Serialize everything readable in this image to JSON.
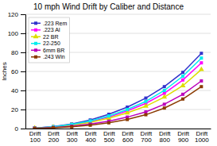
{
  "chart_data": {
    "type": "line",
    "title": "10 mph Wind Drift by Caliber and Distance",
    "ylabel": "Inches",
    "categories": [
      "Drift\n100",
      "Drift\n200",
      "Drift\n300",
      "Drift\n400",
      "Drift\n500",
      "Drift\n600",
      "Drift\n700",
      "Drift\n800",
      "Drift\n900",
      "Drift\n1000"
    ],
    "series": [
      {
        "name": ".223 Rem",
        "color": "#3333CC",
        "marker": "square",
        "values": [
          0.5,
          2.0,
          4.8,
          9.0,
          15.0,
          22.5,
          32.0,
          44.0,
          59.0,
          79.0
        ]
      },
      {
        "name": ".223 AI",
        "color": "#FF00FF",
        "marker": "square",
        "values": [
          0.4,
          1.7,
          3.9,
          7.2,
          12.0,
          18.5,
          26.5,
          37.0,
          51.0,
          69.0
        ]
      },
      {
        "name": "22 BR",
        "color": "#DDDD00",
        "marker": "triangle",
        "values": [
          0.4,
          1.5,
          3.5,
          6.5,
          10.8,
          16.5,
          23.5,
          33.0,
          45.0,
          62.0
        ]
      },
      {
        "name": "22-250",
        "color": "#00EEEE",
        "marker": "square",
        "values": [
          0.5,
          1.9,
          4.3,
          8.0,
          13.2,
          20.0,
          28.5,
          40.0,
          55.0,
          74.0
        ]
      },
      {
        "name": "6mm BR",
        "color": "#BB00BB",
        "marker": "square",
        "values": [
          0.3,
          1.1,
          2.5,
          4.7,
          7.8,
          12.0,
          17.5,
          25.5,
          36.0,
          50.0
        ]
      },
      {
        "name": ".243 Win",
        "color": "#8B3A00",
        "marker": "square",
        "values": [
          0.2,
          0.8,
          1.8,
          3.5,
          6.0,
          9.5,
          14.5,
          21.5,
          31.0,
          44.0
        ]
      }
    ],
    "ylim": [
      0,
      120
    ],
    "yticks": [
      0,
      20,
      40,
      60,
      80,
      100,
      120
    ],
    "grid": true,
    "legend": "upper left"
  }
}
